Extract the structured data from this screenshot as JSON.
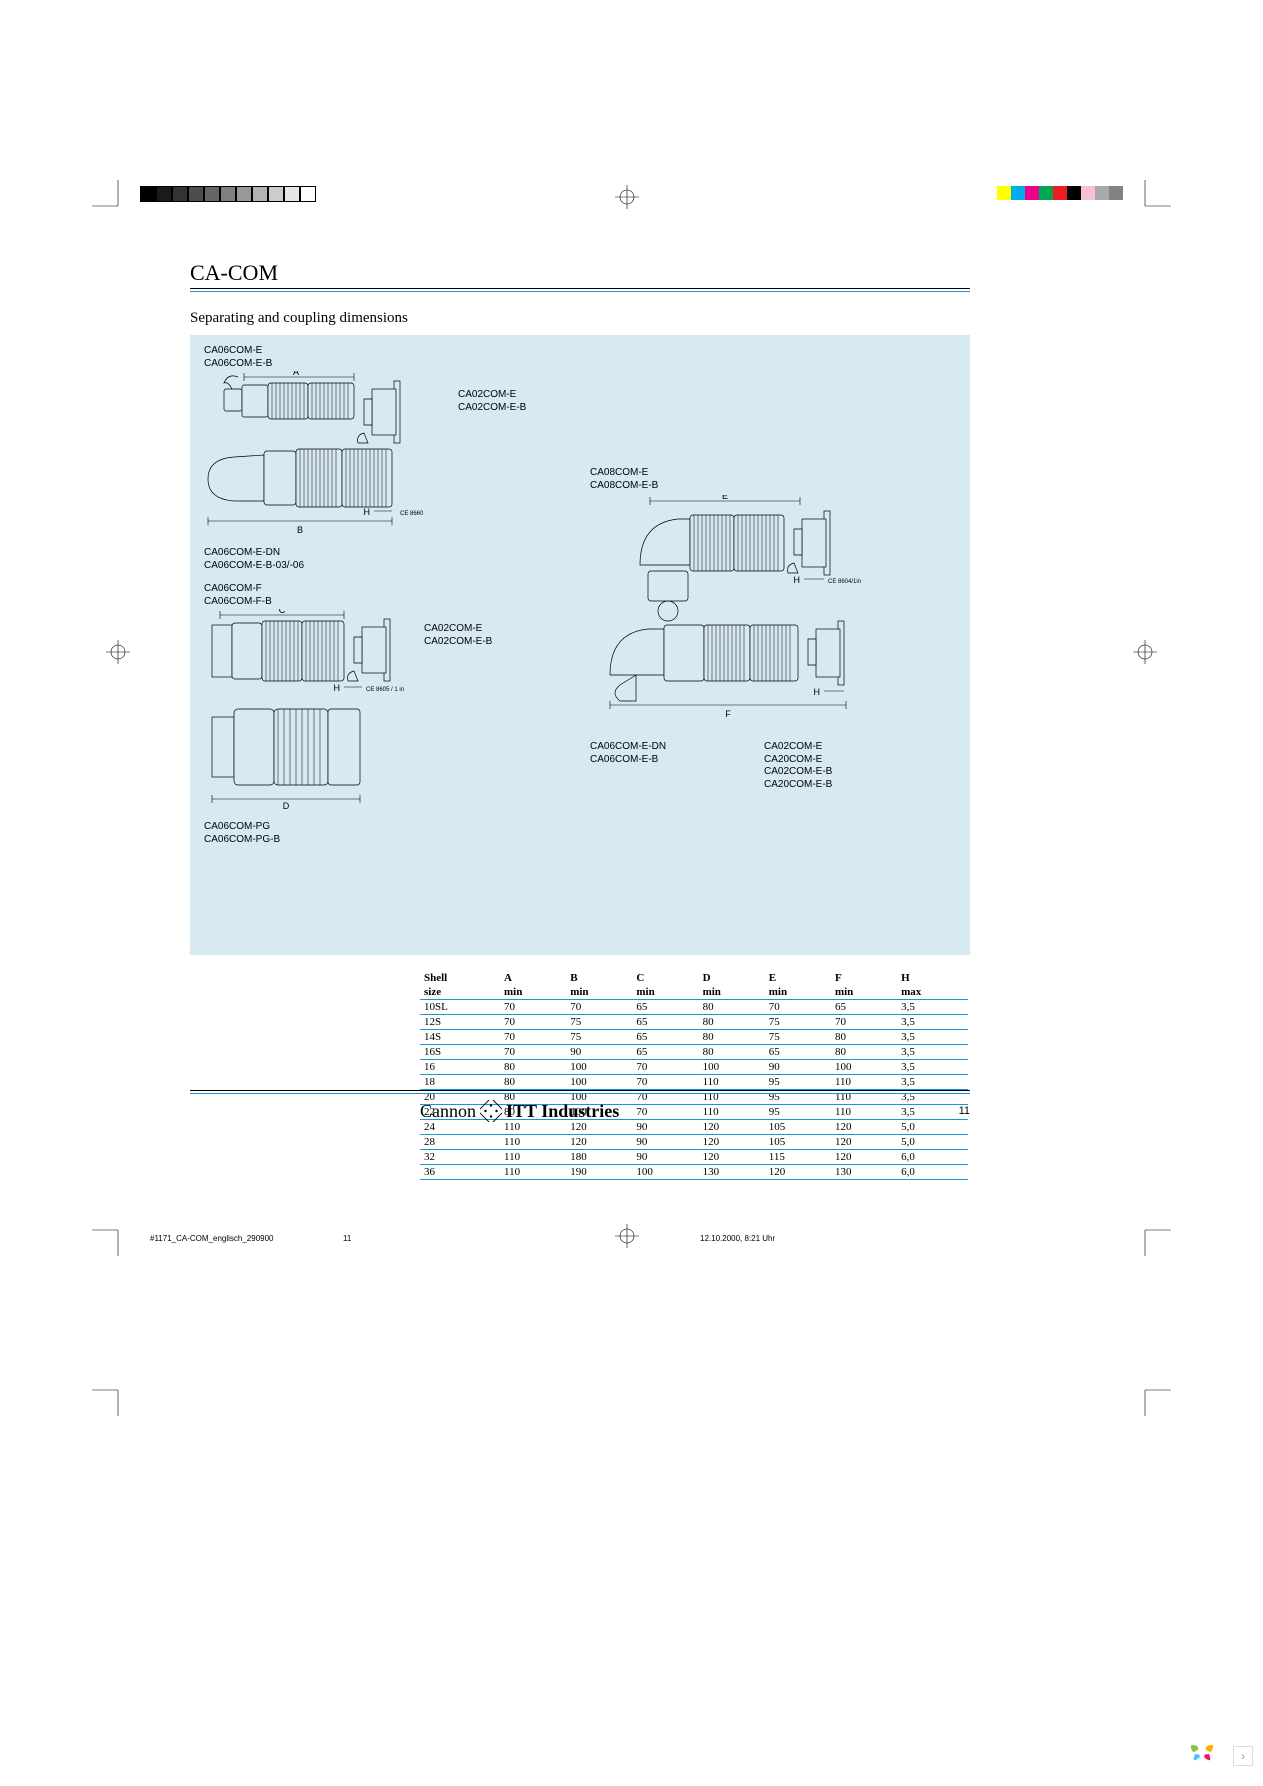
{
  "colors": {
    "accent": "#1996d6",
    "diagram_bg": "#d7eaf3",
    "text": "#000000",
    "page_bg": "#ffffff"
  },
  "print_marks": {
    "grey_bar_swatches": [
      "#000000",
      "#1a1a1a",
      "#333333",
      "#4d4d4d",
      "#666666",
      "#808080",
      "#999999",
      "#b3b3b3",
      "#cccccc",
      "#e6e6e6",
      "#ffffff"
    ],
    "color_bar_swatches": [
      "#ffff00",
      "#00aeef",
      "#ec008c",
      "#00a651",
      "#ed1c24",
      "#000000",
      "#f7c0d8",
      "#a7a9ac",
      "#808285"
    ]
  },
  "header": {
    "title": "CA-COM",
    "subtitle": "Separating and coupling dimensions"
  },
  "diagrams": {
    "group_a": {
      "labels": [
        "CA06COM-E",
        "CA06COM-E-B"
      ],
      "dim_labels": [
        "A",
        "B",
        "H"
      ],
      "receptacle": [
        "CA02COM-E",
        "CA02COM-E-B"
      ],
      "note": "CE 8660"
    },
    "group_b": {
      "labels": [
        "CA06COM-E-DN",
        "CA06COM-E-B-03/-06"
      ]
    },
    "group_c": {
      "labels": [
        "CA06COM-F",
        "CA06COM-F-B"
      ],
      "dim_labels": [
        "C",
        "D",
        "H"
      ],
      "receptacle": [
        "CA02COM-E",
        "CA02COM-E-B"
      ],
      "note": "CE 8605 / 1 in"
    },
    "group_d": {
      "labels": [
        "CA06COM-PG",
        "CA06COM-PG-B"
      ]
    },
    "group_e": {
      "labels_top": [
        "CA08COM-E",
        "CA08COM-E-B"
      ],
      "dim_labels": [
        "E",
        "F",
        "H"
      ],
      "note": "CE 8604/1in",
      "labels_bottom_left": [
        "CA06COM-E-DN",
        "CA06COM-E-B"
      ],
      "labels_bottom_right": [
        "CA02COM-E",
        "CA20COM-E",
        "CA02COM-E-B",
        "CA20COM-E-B"
      ]
    }
  },
  "table": {
    "columns": [
      {
        "key": "shell",
        "label": "Shell",
        "sub": "size",
        "align": "left"
      },
      {
        "key": "A",
        "label": "A",
        "sub": "min",
        "align": "left"
      },
      {
        "key": "B",
        "label": "B",
        "sub": "min",
        "align": "left"
      },
      {
        "key": "C",
        "label": "C",
        "sub": "min",
        "align": "left"
      },
      {
        "key": "D",
        "label": "D",
        "sub": "min",
        "align": "left"
      },
      {
        "key": "E",
        "label": "E",
        "sub": "min",
        "align": "left"
      },
      {
        "key": "F",
        "label": "F",
        "sub": "min",
        "align": "left"
      },
      {
        "key": "H",
        "label": "H",
        "sub": "max",
        "align": "left"
      }
    ],
    "rows": [
      [
        "10SL",
        "70",
        "70",
        "65",
        "80",
        "70",
        "65",
        "3,5"
      ],
      [
        "12S",
        "70",
        "75",
        "65",
        "80",
        "75",
        "70",
        "3,5"
      ],
      [
        "14S",
        "70",
        "75",
        "65",
        "80",
        "75",
        "80",
        "3,5"
      ],
      [
        "16S",
        "70",
        "90",
        "65",
        "80",
        "65",
        "80",
        "3,5"
      ],
      [
        "16",
        "80",
        "100",
        "70",
        "100",
        "90",
        "100",
        "3,5"
      ],
      [
        "18",
        "80",
        "100",
        "70",
        "110",
        "95",
        "110",
        "3,5"
      ],
      [
        "20",
        "80",
        "100",
        "70",
        "110",
        "95",
        "110",
        "3,5"
      ],
      [
        "22",
        "80",
        "100",
        "70",
        "110",
        "95",
        "110",
        "3,5"
      ],
      [
        "24",
        "110",
        "120",
        "90",
        "120",
        "105",
        "120",
        "5,0"
      ],
      [
        "28",
        "110",
        "120",
        "90",
        "120",
        "105",
        "120",
        "5,0"
      ],
      [
        "32",
        "110",
        "180",
        "90",
        "120",
        "115",
        "120",
        "6,0"
      ],
      [
        "36",
        "110",
        "190",
        "100",
        "130",
        "120",
        "130",
        "6,0"
      ]
    ],
    "header_fontsize": 11,
    "row_fontsize": 11,
    "rule_color": "#1996d6"
  },
  "footer": {
    "brand_left": "Cannon",
    "brand_right": "ITT Industries",
    "page_number": "11"
  },
  "slug": {
    "filename": "#1171_CA-COM_englisch_290900",
    "sheet": "11",
    "timestamp": "12.10.2000, 8:21 Uhr"
  }
}
